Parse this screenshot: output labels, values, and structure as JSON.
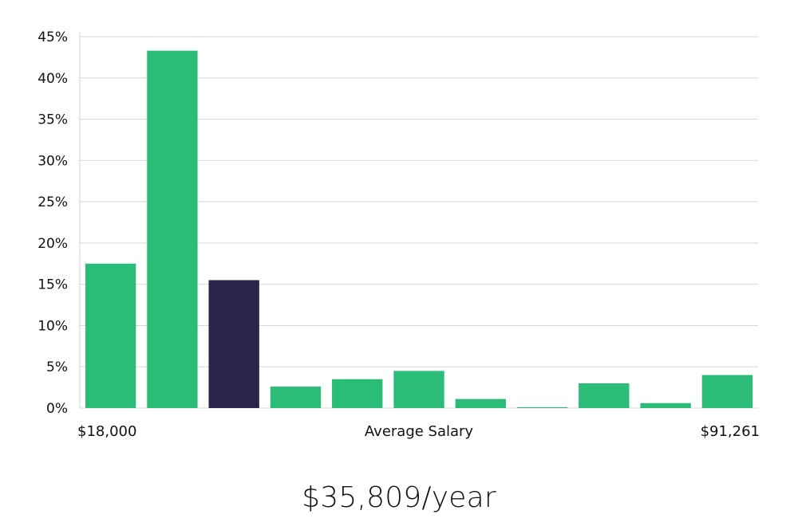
{
  "chart_data": {
    "type": "bar",
    "title": "",
    "xlabel": "Average Salary",
    "ylabel": "",
    "ylim": [
      0,
      45
    ],
    "yticks": [
      0,
      5,
      10,
      15,
      20,
      25,
      30,
      35,
      40,
      45
    ],
    "ytick_suffix": "%",
    "grid": true,
    "x_min_label": "$18,000",
    "x_max_label": "$91,261",
    "values": [
      17.5,
      43.3,
      15.5,
      2.6,
      3.5,
      4.5,
      1.1,
      0.1,
      3.0,
      0.6,
      4.0
    ],
    "highlight_index": 2,
    "colors": {
      "bar": "#2bbd77",
      "highlight": "#28244a",
      "grid": "#d8d8d8",
      "axis": "#d0d0d0"
    }
  },
  "summary": {
    "salary_text": "$35,809/year"
  }
}
